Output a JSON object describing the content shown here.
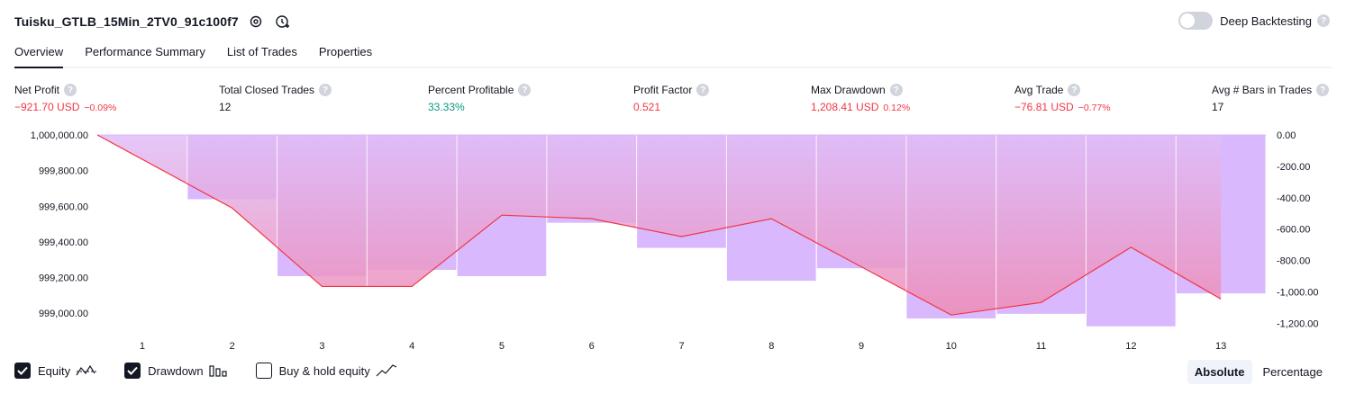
{
  "strategy": {
    "name": "Tuisku_GTLB_15Min_2TV0_91c100f7"
  },
  "deep_backtesting": {
    "label": "Deep Backtesting",
    "enabled": false,
    "help": "?"
  },
  "tabs": [
    {
      "label": "Overview",
      "active": true
    },
    {
      "label": "Performance Summary",
      "active": false
    },
    {
      "label": "List of Trades",
      "active": false
    },
    {
      "label": "Properties",
      "active": false
    }
  ],
  "stats": {
    "net_profit": {
      "label": "Net Profit",
      "value": "−921.70 USD",
      "pct": "−0.09%"
    },
    "total_closed_trades": {
      "label": "Total Closed Trades",
      "value": "12"
    },
    "percent_profitable": {
      "label": "Percent Profitable",
      "value": "33.33%"
    },
    "profit_factor": {
      "label": "Profit Factor",
      "value": "0.521"
    },
    "max_drawdown": {
      "label": "Max Drawdown",
      "value": "1,208.41 USD",
      "pct": "0.12%"
    },
    "avg_trade": {
      "label": "Avg Trade",
      "value": "−76.81 USD",
      "pct": "−0.77%"
    },
    "avg_bars": {
      "label": "Avg # Bars in Trades",
      "value": "17"
    }
  },
  "chart_data": {
    "type": "bar",
    "x": [
      1,
      2,
      3,
      4,
      5,
      6,
      7,
      8,
      9,
      10,
      11,
      12,
      13
    ],
    "equity_ticks": [
      "1,000,000.00",
      "999,800.00",
      "999,600.00",
      "999,400.00",
      "999,200.00",
      "999,000.00"
    ],
    "drawdown_ticks": [
      "0.00",
      "-200.00",
      "-400.00",
      "-600.00",
      "-800.00",
      "-1,000.00",
      "-1,200.00"
    ],
    "equity_ylim": [
      998900,
      1000000
    ],
    "drawdown_ylim": [
      -1250,
      0
    ],
    "series": [
      {
        "name": "Equity",
        "color": "#f23645",
        "values": [
          1000000,
          999590,
          999150,
          999150,
          999550,
          999530,
          999430,
          999530,
          999260,
          998990,
          999060,
          999370,
          999080
        ]
      },
      {
        "name": "Drawdown",
        "color": "#d9b8fd",
        "values": [
          0,
          -410,
          -900,
          -860,
          -900,
          -560,
          -720,
          -930,
          -850,
          -1170,
          -1140,
          -1220,
          -1010
        ]
      }
    ]
  },
  "legend": {
    "equity": {
      "label": "Equity",
      "checked": true
    },
    "drawdown": {
      "label": "Drawdown",
      "checked": true
    },
    "buy_hold": {
      "label": "Buy & hold equity",
      "checked": false
    }
  },
  "mode": {
    "absolute": "Absolute",
    "percentage": "Percentage",
    "selected": "Absolute"
  },
  "colors": {
    "negative": "#f23645",
    "positive": "#089981",
    "drawdown_fill": "#d9b8fd",
    "equity_fill": "#f5a0b5"
  }
}
